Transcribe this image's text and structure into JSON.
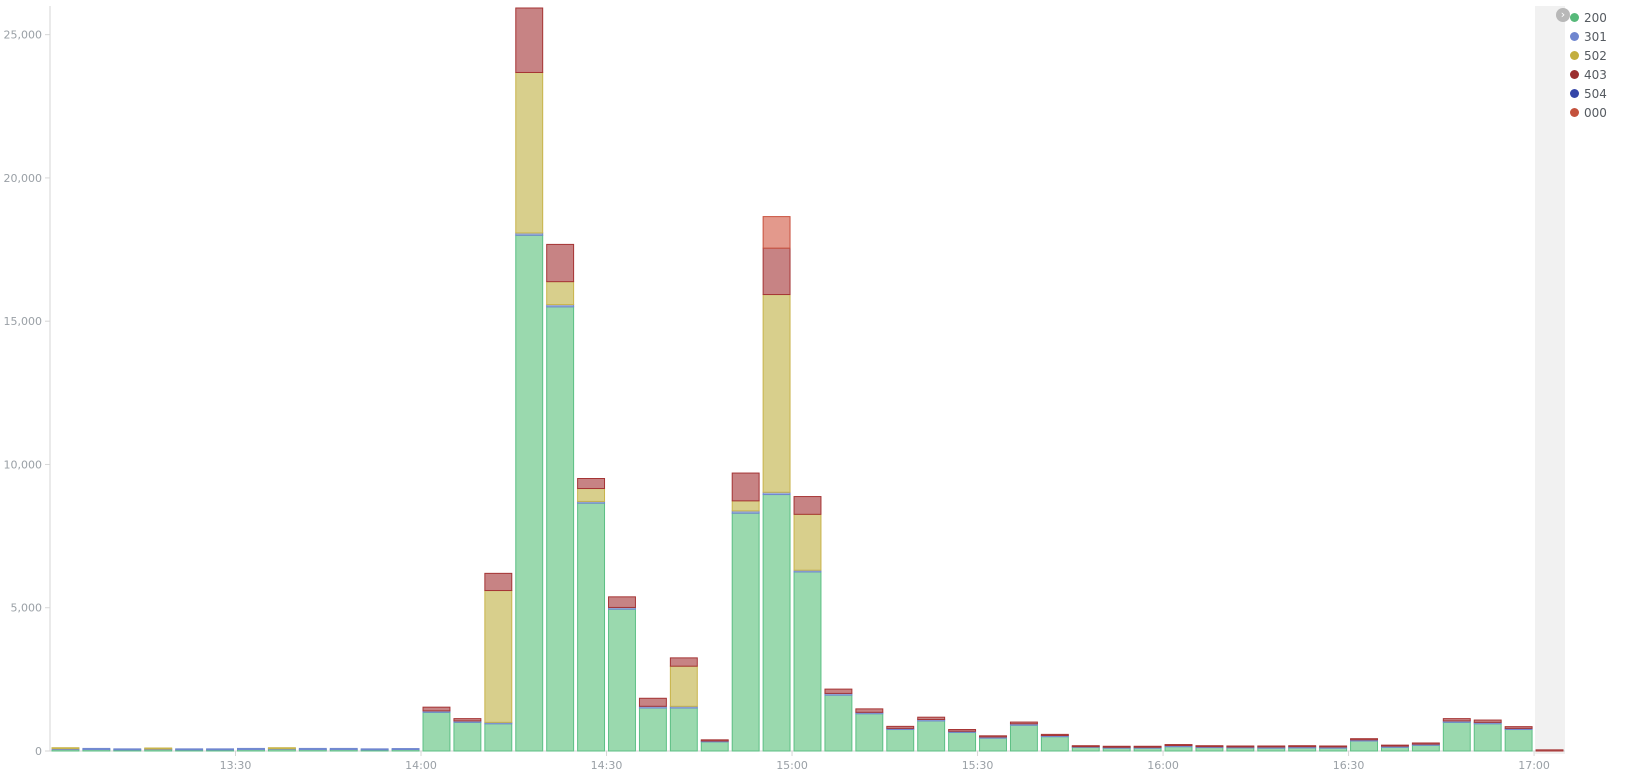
{
  "chart_data": {
    "type": "bar",
    "stacked": true,
    "title": "",
    "xlabel": "",
    "ylabel": "",
    "ylim": [
      0,
      26000
    ],
    "y_ticks": [
      0,
      5000,
      10000,
      15000,
      20000,
      25000
    ],
    "y_tick_labels": [
      "0",
      "5,000",
      "10,000",
      "15,000",
      "20,000",
      "25,000"
    ],
    "x_tick_labels": [
      "13:30",
      "14:00",
      "14:30",
      "15:00",
      "15:30",
      "16:00",
      "16:30",
      "17:00"
    ],
    "x_tick_positions": [
      6,
      12,
      18,
      24,
      30,
      36,
      42,
      48
    ],
    "grid": false,
    "legend_placement": "top-right",
    "categories": [
      "13:00",
      "13:05",
      "13:10",
      "13:15",
      "13:20",
      "13:25",
      "13:30",
      "13:35",
      "13:40",
      "13:45",
      "13:50",
      "13:55",
      "14:00",
      "14:05",
      "14:10",
      "14:15",
      "14:20",
      "14:25",
      "14:30",
      "14:35",
      "14:40",
      "14:45",
      "14:50",
      "14:55",
      "15:00",
      "15:05",
      "15:10",
      "15:15",
      "15:20",
      "15:25",
      "15:30",
      "15:35",
      "15:40",
      "15:45",
      "15:50",
      "15:55",
      "16:00",
      "16:05",
      "16:10",
      "16:15",
      "16:20",
      "16:25",
      "16:30",
      "16:35",
      "16:40",
      "16:45",
      "16:50",
      "16:55",
      "17:00"
    ],
    "series": [
      {
        "name": "200",
        "color": "#9ad9ae",
        "stroke": "#5cbf84",
        "values": [
          50,
          50,
          40,
          50,
          40,
          40,
          50,
          60,
          50,
          50,
          40,
          50,
          1350,
          1000,
          950,
          18000,
          15500,
          8650,
          4950,
          1500,
          1500,
          320,
          8300,
          8950,
          6250,
          1950,
          1300,
          750,
          1050,
          650,
          450,
          900,
          500,
          130,
          100,
          100,
          150,
          120,
          110,
          100,
          110,
          100,
          350,
          130,
          200,
          1000,
          950,
          750,
          0
        ]
      },
      {
        "name": "301",
        "color": "#9fb0d8",
        "stroke": "#6f86cf",
        "values": [
          30,
          40,
          30,
          20,
          30,
          30,
          40,
          20,
          40,
          40,
          30,
          30,
          50,
          50,
          50,
          80,
          80,
          60,
          60,
          60,
          60,
          30,
          80,
          80,
          60,
          60,
          50,
          40,
          50,
          40,
          40,
          50,
          40,
          20,
          30,
          30,
          40,
          30,
          30,
          40,
          40,
          40,
          40,
          40,
          40,
          50,
          50,
          40,
          0
        ]
      },
      {
        "name": "502",
        "color": "#d8cf8c",
        "stroke": "#c8b44a",
        "values": [
          20,
          0,
          0,
          30,
          0,
          0,
          0,
          30,
          0,
          0,
          0,
          0,
          0,
          0,
          4600,
          5600,
          800,
          450,
          0,
          0,
          1400,
          0,
          350,
          6900,
          1950,
          0,
          0,
          0,
          0,
          0,
          0,
          0,
          0,
          0,
          0,
          0,
          0,
          0,
          0,
          0,
          0,
          0,
          0,
          0,
          0,
          0,
          0,
          0,
          0
        ]
      },
      {
        "name": "403",
        "color": "#c78384",
        "stroke": "#a53434",
        "values": [
          0,
          0,
          0,
          0,
          0,
          0,
          0,
          0,
          0,
          0,
          0,
          0,
          130,
          80,
          600,
          2250,
          1300,
          350,
          370,
          280,
          290,
          40,
          970,
          1620,
          620,
          150,
          120,
          70,
          80,
          60,
          40,
          60,
          40,
          30,
          20,
          20,
          20,
          30,
          30,
          20,
          30,
          30,
          40,
          30,
          40,
          80,
          80,
          60,
          40
        ]
      },
      {
        "name": "504",
        "color": "#8e9ad0",
        "stroke": "#3a4cb5",
        "values": [
          0,
          0,
          0,
          0,
          0,
          0,
          0,
          0,
          0,
          0,
          0,
          0,
          0,
          0,
          0,
          0,
          0,
          0,
          0,
          0,
          0,
          0,
          0,
          0,
          0,
          0,
          0,
          0,
          0,
          0,
          0,
          0,
          0,
          0,
          0,
          0,
          0,
          0,
          0,
          0,
          0,
          0,
          0,
          0,
          0,
          0,
          0,
          0,
          0
        ]
      },
      {
        "name": "000",
        "color": "#e3998c",
        "stroke": "#c8503c",
        "values": [
          0,
          0,
          0,
          0,
          0,
          0,
          0,
          0,
          0,
          0,
          0,
          0,
          0,
          0,
          0,
          0,
          0,
          0,
          0,
          0,
          0,
          0,
          0,
          1100,
          0,
          0,
          0,
          0,
          0,
          0,
          0,
          0,
          0,
          0,
          0,
          0,
          0,
          0,
          0,
          0,
          0,
          0,
          0,
          0,
          0,
          0,
          0,
          0,
          0
        ]
      }
    ]
  },
  "legend": {
    "toggle_icon": "chevron-right-icon",
    "toggle_glyph": "›",
    "items": [
      {
        "label": "200",
        "color": "#57b97a"
      },
      {
        "label": "301",
        "color": "#6f86cf"
      },
      {
        "label": "502",
        "color": "#c3ae3f"
      },
      {
        "label": "403",
        "color": "#9c2f2f"
      },
      {
        "label": "504",
        "color": "#3546a8"
      },
      {
        "label": "000",
        "color": "#c4523d"
      }
    ]
  }
}
